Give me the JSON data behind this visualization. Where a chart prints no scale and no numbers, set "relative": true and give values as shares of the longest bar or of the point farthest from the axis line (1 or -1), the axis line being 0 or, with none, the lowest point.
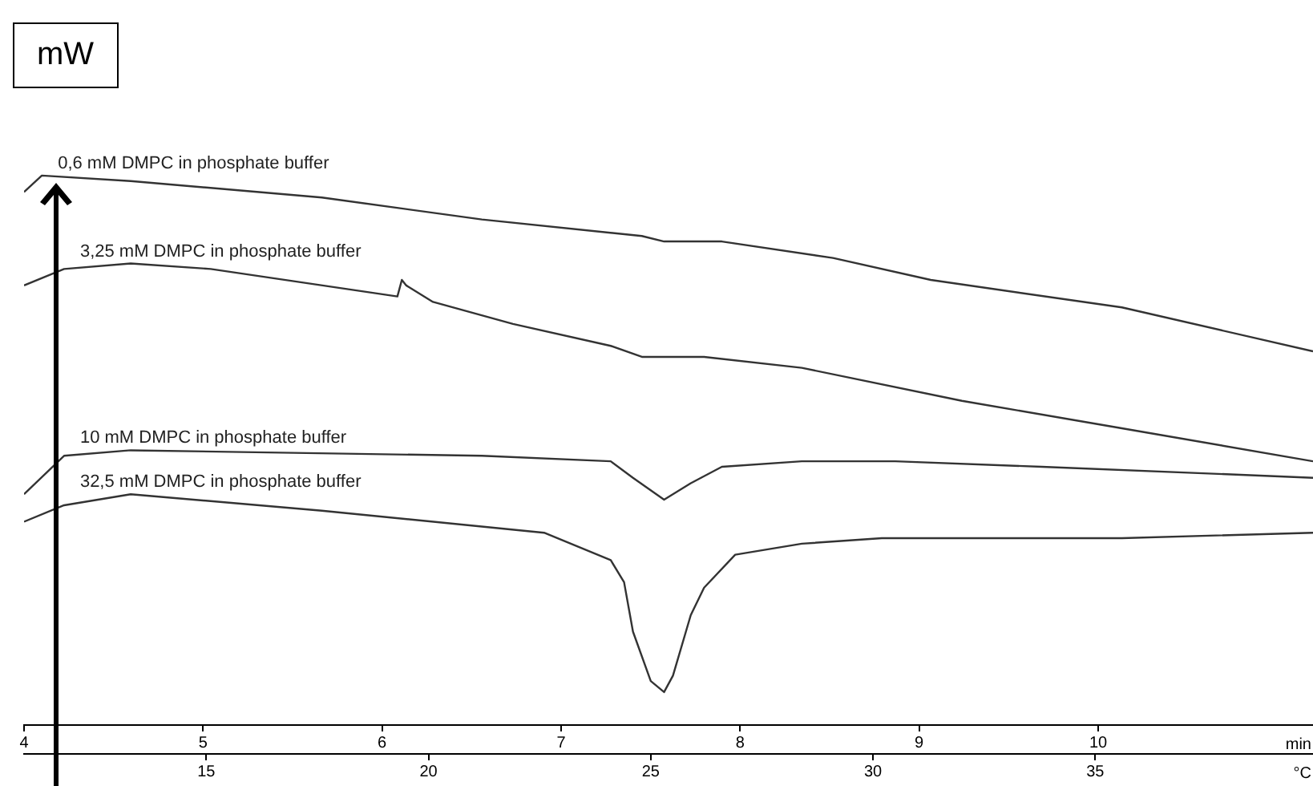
{
  "chart_data": {
    "type": "line",
    "relative": true,
    "ylabel": "mW",
    "xlabel": "°C",
    "x2label": "min",
    "xlim": [
      10.9,
      39.9
    ],
    "xticks": [
      15,
      20,
      25,
      30,
      35
    ],
    "x2lim": [
      4,
      11.2
    ],
    "x2ticks": [
      4,
      5,
      6,
      7,
      8,
      9,
      10
    ],
    "grid": false,
    "legend": false,
    "marker": "none",
    "line_style": "solid",
    "series": [
      {
        "name": "0,6 mM DMPC in phosphate buffer",
        "color": "#333333",
        "x": [
          10.9,
          11.3,
          13.3,
          17.6,
          21.2,
          24.8,
          25.3,
          26.6,
          29.1,
          31.3,
          35.6,
          39.9
        ],
        "values": [
          0.97,
          1,
          0.99,
          0.96,
          0.92,
          0.89,
          0.88,
          0.88,
          0.85,
          0.81,
          0.76,
          0.68
        ]
      },
      {
        "name": "3,25 mM DMPC in phosphate buffer",
        "color": "#333333",
        "x": [
          10.9,
          11.8,
          13.3,
          15.1,
          19.3,
          19.4,
          19.5,
          20.1,
          21.9,
          24.1,
          24.8,
          25.3,
          26.2,
          28.4,
          32.0,
          35.6,
          39.9
        ],
        "values": [
          0.8,
          0.83,
          0.84,
          0.83,
          0.78,
          0.81,
          0.8,
          0.77,
          0.73,
          0.69,
          0.67,
          0.67,
          0.67,
          0.65,
          0.59,
          0.54,
          0.48
        ]
      },
      {
        "name": "10 mM DMPC in phosphate buffer",
        "color": "#333333",
        "x": [
          10.9,
          11.8,
          13.3,
          21.2,
          24.1,
          24.6,
          25.3,
          25.9,
          26.6,
          28.4,
          30.5,
          33.8,
          39.9
        ],
        "values": [
          0.42,
          0.49,
          0.5,
          0.49,
          0.48,
          0.45,
          0.41,
          0.44,
          0.47,
          0.48,
          0.48,
          0.47,
          0.45
        ]
      },
      {
        "name": "32,5 mM DMPC in phosphate buffer",
        "color": "#333333",
        "x": [
          10.9,
          11.8,
          13.3,
          17.6,
          22.6,
          24.1,
          24.4,
          24.6,
          25.0,
          25.3,
          25.5,
          25.9,
          26.2,
          26.9,
          28.4,
          30.2,
          35.6,
          39.9
        ],
        "values": [
          0.37,
          0.4,
          0.42,
          0.39,
          0.35,
          0.3,
          0.26,
          0.17,
          0.08,
          0.06,
          0.09,
          0.2,
          0.25,
          0.31,
          0.33,
          0.34,
          0.34,
          0.35
        ]
      }
    ]
  }
}
